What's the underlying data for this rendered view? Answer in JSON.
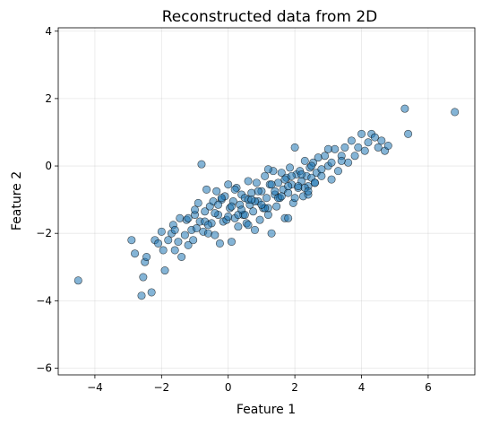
{
  "chart_data": {
    "type": "scatter",
    "title": "Reconstructed data from 2D",
    "xlabel": "Feature 1",
    "ylabel": "Feature 2",
    "xlim": [
      -5.1,
      7.4
    ],
    "ylim": [
      -6.2,
      4.1
    ],
    "xticks": [
      -4,
      -2,
      0,
      2,
      4,
      6
    ],
    "yticks": [
      -6,
      -4,
      -2,
      0,
      2,
      4
    ],
    "xtick_labels": [
      "−4",
      "−2",
      "0",
      "2",
      "4",
      "6"
    ],
    "ytick_labels": [
      "−6",
      "−4",
      "−2",
      "0",
      "2",
      "4"
    ],
    "grid": true,
    "marker_color": "#1f77b4",
    "marker_edge_color": "#000000",
    "marker_alpha": 0.55,
    "series": [
      {
        "x": [
          -4.5,
          -2.9,
          -2.8,
          -2.6,
          -2.55,
          -2.5,
          -2.45,
          -2.3,
          -2.2,
          -2.1,
          -2.0,
          -1.95,
          -1.9,
          -1.8,
          -1.7,
          -1.65,
          -1.6,
          -1.5,
          -1.45,
          -1.4,
          -1.3,
          -1.25,
          -1.2,
          -1.1,
          -1.05,
          -1.0,
          -0.95,
          -0.9,
          -0.85,
          -0.8,
          -0.75,
          -0.7,
          -0.65,
          -0.6,
          -0.55,
          -0.5,
          -0.45,
          -0.4,
          -0.35,
          -0.3,
          -0.25,
          -0.2,
          -0.15,
          -0.1,
          -0.05,
          0.0,
          0.05,
          0.1,
          0.15,
          0.2,
          0.25,
          0.3,
          0.35,
          0.4,
          0.45,
          0.5,
          0.55,
          0.6,
          0.65,
          0.7,
          0.75,
          0.8,
          0.85,
          0.9,
          0.95,
          1.0,
          1.05,
          1.1,
          1.15,
          1.2,
          1.25,
          1.3,
          1.35,
          1.4,
          1.45,
          1.5,
          1.55,
          1.6,
          1.65,
          1.7,
          1.75,
          1.8,
          1.85,
          1.9,
          1.95,
          2.0,
          2.05,
          2.1,
          2.15,
          2.2,
          2.25,
          2.3,
          2.35,
          2.4,
          2.45,
          2.5,
          2.55,
          2.6,
          2.65,
          2.7,
          2.8,
          2.9,
          3.0,
          3.1,
          3.2,
          3.3,
          3.4,
          3.5,
          3.6,
          3.7,
          3.8,
          3.9,
          4.0,
          4.1,
          4.2,
          4.3,
          4.4,
          4.5,
          4.6,
          4.7,
          4.8,
          5.3,
          5.4,
          6.8,
          -0.7,
          -0.4,
          0.1,
          0.3,
          0.6,
          0.9,
          1.2,
          1.5,
          1.8,
          2.1,
          2.4,
          -1.0,
          -0.2,
          0.2,
          0.5,
          0.8,
          1.1,
          1.4,
          1.7,
          2.0,
          2.3,
          2.6,
          -1.6,
          -1.2,
          -0.6,
          0.0,
          0.4,
          0.7,
          1.0,
          1.3,
          1.6,
          1.9,
          2.2,
          2.5,
          2.8,
          3.1,
          3.4,
          -0.3,
          0.6,
          1.2,
          1.8,
          2.4,
          3.0
        ],
        "y": [
          -3.4,
          -2.2,
          -2.6,
          -3.85,
          -3.3,
          -2.85,
          -2.7,
          -3.75,
          -2.2,
          -2.3,
          -1.95,
          -2.5,
          -3.1,
          -2.2,
          -2.0,
          -1.75,
          -2.5,
          -2.25,
          -1.55,
          -2.7,
          -2.05,
          -1.6,
          -2.35,
          -1.9,
          -2.2,
          -1.45,
          -1.85,
          -1.1,
          -1.65,
          0.05,
          -1.95,
          -1.35,
          -0.7,
          -2.0,
          -1.2,
          -1.7,
          -1.05,
          -2.05,
          -0.75,
          -1.45,
          -2.3,
          -1.0,
          -1.65,
          -0.9,
          -1.6,
          -0.55,
          -1.25,
          -2.25,
          -1.05,
          -1.55,
          -0.65,
          -1.8,
          -1.15,
          -0.85,
          -1.45,
          -0.95,
          -1.7,
          -0.45,
          -1.15,
          -0.8,
          -1.35,
          -1.9,
          -0.5,
          -1.05,
          -1.6,
          -0.75,
          -1.25,
          -0.3,
          -0.95,
          -1.45,
          -0.55,
          -2.0,
          -0.15,
          -0.85,
          -1.2,
          -0.5,
          -0.95,
          -0.2,
          -0.7,
          -1.55,
          -0.35,
          -0.8,
          -0.05,
          -0.55,
          -1.1,
          0.55,
          -0.25,
          -0.65,
          -0.15,
          -0.45,
          -0.9,
          0.15,
          -0.3,
          -0.6,
          -0.05,
          -0.35,
          0.1,
          -0.5,
          -0.2,
          0.25,
          -0.1,
          0.3,
          0.0,
          -0.4,
          0.5,
          -0.15,
          0.3,
          0.55,
          0.1,
          0.75,
          0.3,
          0.55,
          0.95,
          0.45,
          0.7,
          0.95,
          0.85,
          0.55,
          0.75,
          0.45,
          0.6,
          1.7,
          0.95,
          1.6,
          -1.65,
          -1.4,
          -1.2,
          -1.45,
          -1.0,
          -0.75,
          -1.25,
          -0.95,
          -1.55,
          -0.6,
          -0.85,
          -1.3,
          -0.95,
          -0.7,
          -1.45,
          -1.05,
          -1.25,
          -0.75,
          -0.4,
          -0.95,
          -0.65,
          -0.5,
          -1.9,
          -1.55,
          -1.75,
          -1.5,
          -1.3,
          -1.0,
          -1.15,
          -0.55,
          -0.9,
          -0.3,
          -0.25,
          0.0,
          -0.3,
          0.1,
          0.15,
          -1.15,
          -1.75,
          -0.1,
          -0.6,
          -0.75,
          0.5
        ]
      }
    ]
  }
}
